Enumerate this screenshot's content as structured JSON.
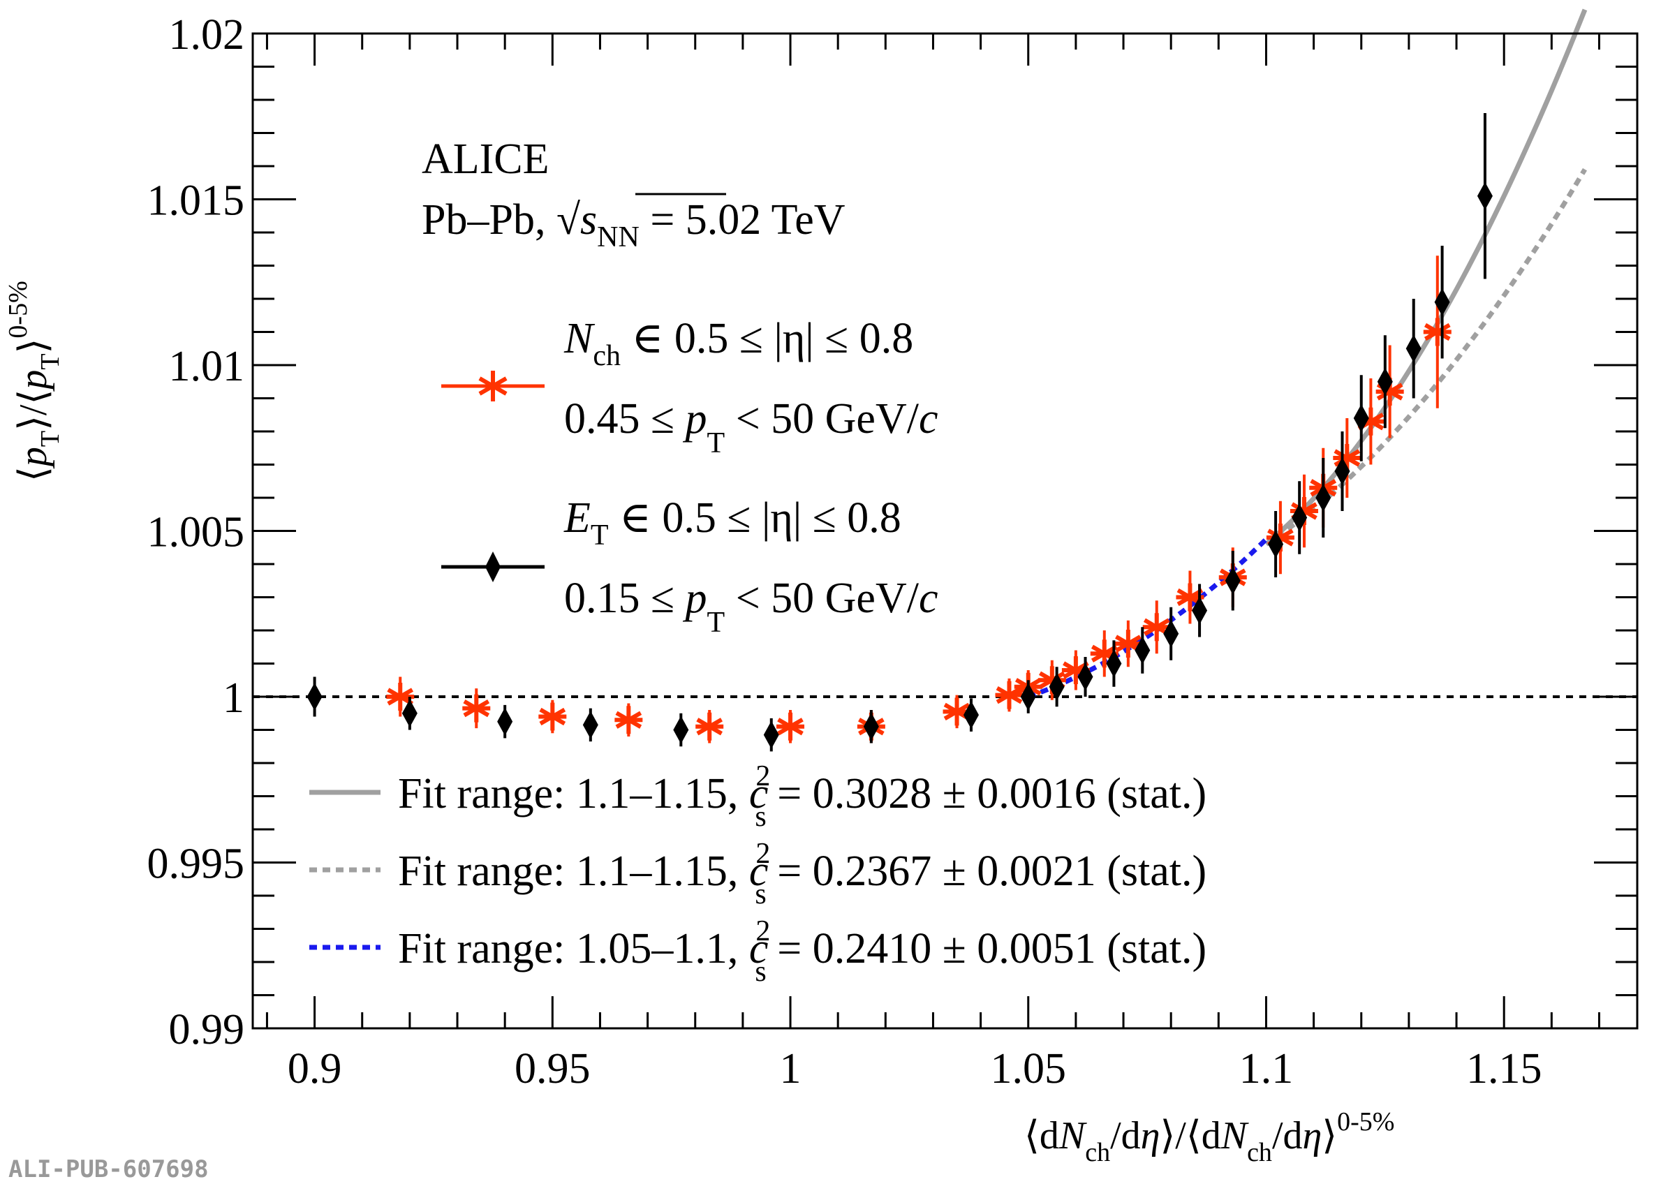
{
  "chart_data": {
    "type": "scatter",
    "xlim": [
      0.887,
      1.178
    ],
    "ylim": [
      0.99,
      1.02
    ],
    "x_ticks": [
      "0.9",
      "0.95",
      "1",
      "1.05",
      "1.1",
      "1.15"
    ],
    "y_ticks": [
      "0.99",
      "0.995",
      "1",
      "1.005",
      "1.01",
      "1.015",
      "1.02"
    ],
    "xlabel": {
      "pre": "⟨d",
      "N": "N",
      "sub": "ch",
      "mid": "/d",
      "eta": "η",
      "close": "⟩/⟨d",
      "N2": "N",
      "sub2": "ch",
      "mid2": "/d",
      "eta2": "η",
      "close2": "⟩",
      "sup": "0-5%"
    },
    "ylabel": {
      "a": "⟨",
      "p": "p",
      "sub": "T",
      "b": "⟩/⟨",
      "p2": "p",
      "sub2": "T",
      "c": "⟩",
      "sup": "0-5%"
    },
    "reference_line": 1.0,
    "experiment": "ALICE",
    "system": {
      "text": "Pb–Pb, ",
      "sqrt": "√",
      "s": "s",
      "sub": "NN",
      "rest": " = 5.02 TeV"
    },
    "watermark": "ALI-PUB-607698",
    "series": [
      {
        "name_line1": {
          "var": "N",
          "sub": "ch",
          "rest": " ∈ 0.5 ≤ |η| ≤ 0.8"
        },
        "name_line2": {
          "pre": "0.45 ≤ ",
          "var": "p",
          "sub": "T",
          "rest": " < 50 GeV/",
          "c": "c"
        },
        "color": "#ff3300",
        "marker": "asterisk",
        "points": [
          [
            0.918,
            1.0,
            0.0006
          ],
          [
            0.934,
            0.99965,
            0.0006
          ],
          [
            0.95,
            0.9994,
            0.0005
          ],
          [
            0.966,
            0.9993,
            0.0005
          ],
          [
            0.983,
            0.9991,
            0.0005
          ],
          [
            1.0,
            0.9991,
            0.0005
          ],
          [
            1.017,
            0.9991,
            0.0005
          ],
          [
            1.035,
            0.99955,
            0.0005
          ],
          [
            1.046,
            1.00005,
            0.0005
          ],
          [
            1.05,
            1.0003,
            0.0005
          ],
          [
            1.055,
            1.0005,
            0.0006
          ],
          [
            1.06,
            1.0008,
            0.0006
          ],
          [
            1.066,
            1.0013,
            0.0007
          ],
          [
            1.071,
            1.0016,
            0.0007
          ],
          [
            1.077,
            1.0021,
            0.0008
          ],
          [
            1.084,
            1.003,
            0.0008
          ],
          [
            1.093,
            1.0036,
            0.0009
          ],
          [
            1.103,
            1.0048,
            0.0011
          ],
          [
            1.108,
            1.0056,
            0.0011
          ],
          [
            1.112,
            1.0063,
            0.0012
          ],
          [
            1.117,
            1.0072,
            0.0012
          ],
          [
            1.122,
            1.0083,
            0.0013
          ],
          [
            1.126,
            1.0092,
            0.0014
          ],
          [
            1.136,
            1.011,
            0.0023
          ]
        ]
      },
      {
        "name_line1": {
          "var": "E",
          "sub": "T",
          "rest": " ∈ 0.5 ≤ |η| ≤ 0.8"
        },
        "name_line2": {
          "pre": "0.15 ≤ ",
          "var": "p",
          "sub": "T",
          "rest": " < 50 GeV/",
          "c": "c"
        },
        "color": "#000000",
        "marker": "diamond",
        "points": [
          [
            0.9,
            1.0,
            0.0006
          ],
          [
            0.92,
            0.9995,
            0.0005
          ],
          [
            0.94,
            0.99925,
            0.0005
          ],
          [
            0.958,
            0.99915,
            0.0005
          ],
          [
            0.977,
            0.999,
            0.0005
          ],
          [
            0.996,
            0.99885,
            0.0005
          ],
          [
            1.017,
            0.9991,
            0.0005
          ],
          [
            1.038,
            0.99945,
            0.0005
          ],
          [
            1.05,
            1.0,
            0.0005
          ],
          [
            1.056,
            1.0003,
            0.0006
          ],
          [
            1.062,
            1.0006,
            0.0006
          ],
          [
            1.068,
            1.001,
            0.0007
          ],
          [
            1.074,
            1.0014,
            0.0007
          ],
          [
            1.08,
            1.0019,
            0.0008
          ],
          [
            1.086,
            1.0026,
            0.0008
          ],
          [
            1.093,
            1.0035,
            0.0009
          ],
          [
            1.102,
            1.0046,
            0.001
          ],
          [
            1.107,
            1.0054,
            0.0011
          ],
          [
            1.112,
            1.006,
            0.0012
          ],
          [
            1.116,
            1.0068,
            0.0012
          ],
          [
            1.12,
            1.0084,
            0.0013
          ],
          [
            1.125,
            1.0095,
            0.0014
          ],
          [
            1.131,
            1.0105,
            0.0015
          ],
          [
            1.137,
            1.0119,
            0.0017
          ],
          [
            1.146,
            1.0151,
            0.0025
          ]
        ]
      }
    ],
    "fits": [
      {
        "label": "Fit range: 1.1–1.15, ",
        "c": "c",
        "sub": "s",
        "sup": "2",
        "value": " = 0.3028 ± 0.0016 (stat.)",
        "color": "#a0a0a0",
        "dash": "solid",
        "from": 1.1,
        "to": 1.167,
        "p0": 1.0046,
        "p1": 0.12,
        "p2": 1.8
      },
      {
        "label": "Fit range: 1.1–1.15, ",
        "c": "c",
        "sub": "s",
        "sup": "2",
        "value": " = 0.2367 ± 0.0021 (stat.)",
        "color": "#a0a0a0",
        "dash": "dotted",
        "from": 1.1,
        "to": 1.167,
        "p0": 1.0046,
        "p1": 0.095,
        "p2": 1.1
      },
      {
        "label": "Fit range: 1.05–1.1, ",
        "c": "c",
        "sub": "s",
        "sup": "2",
        "value": " = 0.2410 ± 0.0051 (stat.)",
        "color": "#1a1aee",
        "dash": "dotted",
        "from": 1.05,
        "to": 1.1,
        "p0": 1.0,
        "p1": 0.05,
        "p2": 0.9
      }
    ]
  }
}
